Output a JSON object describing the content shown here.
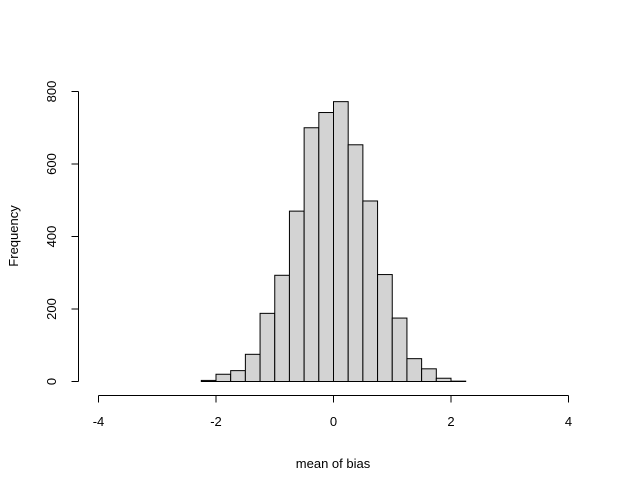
{
  "chart_data": {
    "type": "bar",
    "title": "",
    "xlabel": "mean of bias",
    "ylabel": "Frequency",
    "xlim": [
      -4,
      4
    ],
    "ylim": [
      0,
      800
    ],
    "x_ticks": [
      -4,
      -2,
      0,
      2,
      4
    ],
    "y_ticks": [
      0,
      200,
      400,
      600,
      800
    ],
    "x_tick_labels": [
      "-4",
      "-2",
      "0",
      "2",
      "4"
    ],
    "y_tick_labels": [
      "0",
      "200",
      "400",
      "600",
      "800"
    ],
    "bin_width": 0.25,
    "bins": [
      {
        "start": -4.0,
        "end": -3.75,
        "count": 0
      },
      {
        "start": -3.75,
        "end": -3.5,
        "count": 0
      },
      {
        "start": -3.5,
        "end": -3.25,
        "count": 0
      },
      {
        "start": -3.25,
        "end": -3.0,
        "count": 0
      },
      {
        "start": -3.0,
        "end": -2.75,
        "count": 0
      },
      {
        "start": -2.75,
        "end": -2.5,
        "count": 0
      },
      {
        "start": -2.5,
        "end": -2.25,
        "count": 0
      },
      {
        "start": -2.25,
        "end": -2.0,
        "count": 3
      },
      {
        "start": -2.0,
        "end": -1.75,
        "count": 20
      },
      {
        "start": -1.75,
        "end": -1.5,
        "count": 30
      },
      {
        "start": -1.5,
        "end": -1.25,
        "count": 75
      },
      {
        "start": -1.25,
        "end": -1.0,
        "count": 188
      },
      {
        "start": -1.0,
        "end": -0.75,
        "count": 293
      },
      {
        "start": -0.75,
        "end": -0.5,
        "count": 470
      },
      {
        "start": -0.5,
        "end": -0.25,
        "count": 700
      },
      {
        "start": -0.25,
        "end": 0.0,
        "count": 742
      },
      {
        "start": 0.0,
        "end": 0.25,
        "count": 772
      },
      {
        "start": 0.25,
        "end": 0.5,
        "count": 653
      },
      {
        "start": 0.5,
        "end": 0.75,
        "count": 498
      },
      {
        "start": 0.75,
        "end": 1.0,
        "count": 295
      },
      {
        "start": 1.0,
        "end": 1.25,
        "count": 175
      },
      {
        "start": 1.25,
        "end": 1.5,
        "count": 63
      },
      {
        "start": 1.5,
        "end": 1.75,
        "count": 35
      },
      {
        "start": 1.75,
        "end": 2.0,
        "count": 9
      },
      {
        "start": 2.0,
        "end": 2.25,
        "count": 1
      },
      {
        "start": 2.25,
        "end": 2.5,
        "count": 0
      },
      {
        "start": 2.5,
        "end": 2.75,
        "count": 0
      },
      {
        "start": 2.75,
        "end": 3.0,
        "count": 0
      },
      {
        "start": 3.0,
        "end": 3.25,
        "count": 0
      },
      {
        "start": 3.25,
        "end": 3.5,
        "count": 0
      },
      {
        "start": 3.5,
        "end": 3.75,
        "count": 0
      },
      {
        "start": 3.75,
        "end": 4.0,
        "count": 0
      }
    ],
    "grid": false,
    "legend": "none",
    "bar_fill": "#d3d3d3",
    "bar_stroke": "#000000"
  }
}
